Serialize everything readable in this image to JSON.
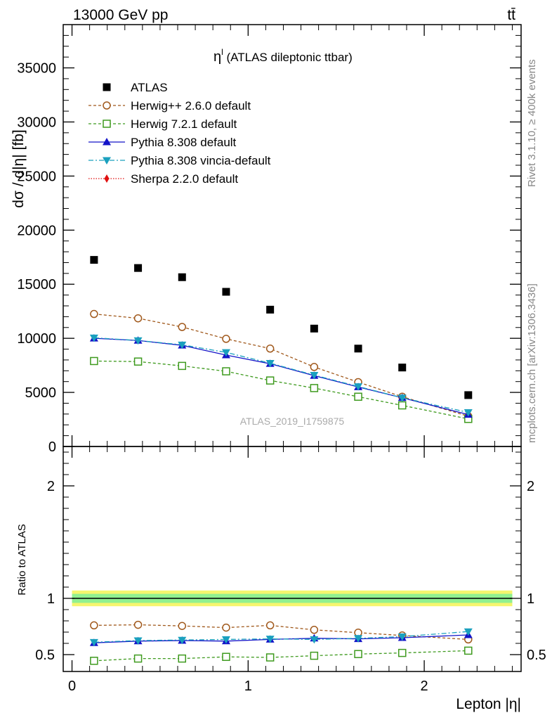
{
  "header": {
    "energy_label": "13000 GeV pp",
    "process_label": "tt̄"
  },
  "side_texts": {
    "rivet": "Rivet 3.1.10, ≥ 400k events",
    "mcplots": "mcplots.cern.ch [arXiv:1306.3436]"
  },
  "plot_title": {
    "main": "η",
    "sup": "l",
    "rest": " (ATLAS dileptonic ttbar)"
  },
  "analysis_id": "ATLAS_2019_I1759875",
  "colors": {
    "ATLAS": "#000000",
    "Herwig++ 2.6.0 default": "#a0581b",
    "Herwig 7.2.1 default": "#3e9a1e",
    "Pythia 8.308 default": "#1313c8",
    "Pythia 8.308 vincia-default": "#1aa0be",
    "Sherpa 2.2.0 default": "#e01010",
    "band_outer": "#f5f56e",
    "band_inner": "#90f090"
  },
  "chart_data": [
    {
      "type": "scatter",
      "panel": "main",
      "title": "η^l (ATLAS dileptonic ttbar)",
      "xlabel": "Lepton |η|",
      "ylabel": "dσ / d|η| [fb]",
      "xlim": [
        -0.05,
        2.55
      ],
      "ylim": [
        0,
        39000
      ],
      "yticks": [
        0,
        5000,
        10000,
        15000,
        20000,
        25000,
        30000,
        35000
      ],
      "ytick_labels": [
        "0",
        "5000",
        "10000",
        "15000",
        "20000",
        "25000",
        "30000",
        "35000"
      ],
      "legend_position": "top-left",
      "x": [
        0.125,
        0.375,
        0.625,
        0.875,
        1.125,
        1.375,
        1.625,
        1.875,
        2.25
      ],
      "series": [
        {
          "name": "ATLAS",
          "style": "data",
          "values": [
            17250,
            16500,
            15650,
            14300,
            12650,
            10900,
            9050,
            7300,
            4750
          ]
        },
        {
          "name": "Herwig++ 2.6.0 default",
          "style": "circle-open",
          "values": [
            12250,
            11850,
            11050,
            9950,
            9050,
            7350,
            5950,
            4600,
            2800
          ]
        },
        {
          "name": "Herwig 7.2.1 default",
          "style": "square-open",
          "values": [
            7900,
            7850,
            7450,
            6950,
            6100,
            5400,
            4600,
            3800,
            2550
          ]
        },
        {
          "name": "Pythia 8.308 default",
          "style": "triangle-up",
          "values": [
            10000,
            9800,
            9350,
            8450,
            7650,
            6550,
            5500,
            4500,
            2950
          ]
        },
        {
          "name": "Pythia 8.308 vincia-default",
          "style": "triangle-down",
          "values": [
            10050,
            9800,
            9400,
            8700,
            7700,
            6600,
            5550,
            4500,
            3150
          ]
        },
        {
          "name": "Sherpa 2.2.0 default",
          "style": "diamond",
          "values": []
        }
      ]
    },
    {
      "type": "line",
      "panel": "ratio",
      "xlabel": "Lepton |η|",
      "ylabel": "Ratio to ATLAS",
      "xlim": [
        -0.05,
        2.55
      ],
      "ylim": [
        0.35,
        2.35
      ],
      "yticks": [
        0.5,
        1,
        2
      ],
      "ytick_labels": [
        "0.5",
        "1",
        "2"
      ],
      "xticks": [
        0,
        1,
        2
      ],
      "xtick_labels": [
        "0",
        "1",
        "2"
      ],
      "x": [
        0.125,
        0.375,
        0.625,
        0.875,
        1.125,
        1.375,
        1.625,
        1.875,
        2.25
      ],
      "series": [
        {
          "name": "Herwig++ 2.6.0 default",
          "style": "circle-open",
          "values": [
            0.76,
            0.765,
            0.755,
            0.74,
            0.76,
            0.72,
            0.695,
            0.67,
            0.635
          ]
        },
        {
          "name": "Herwig 7.2.1 default",
          "style": "square-open",
          "values": [
            0.445,
            0.465,
            0.465,
            0.48,
            0.475,
            0.49,
            0.505,
            0.515,
            0.535
          ]
        },
        {
          "name": "Pythia 8.308 default",
          "style": "triangle-up",
          "values": [
            0.605,
            0.62,
            0.625,
            0.62,
            0.635,
            0.645,
            0.64,
            0.65,
            0.675
          ]
        },
        {
          "name": "Pythia 8.308 vincia-default",
          "style": "triangle-down",
          "values": [
            0.61,
            0.625,
            0.63,
            0.635,
            0.64,
            0.635,
            0.645,
            0.66,
            0.705
          ]
        }
      ]
    }
  ]
}
